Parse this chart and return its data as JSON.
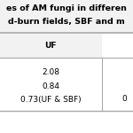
{
  "title_line1": "es of AM fungi in differen",
  "title_line2": "d-burn fields, SBF and m",
  "col_header": "UF",
  "rows": [
    "2.08",
    "0.84",
    "0.73(UF & SBF)"
  ],
  "extra_col_partial": "0",
  "bg_color": "#ffffff",
  "title_bg": "#f2f2f2",
  "header_bg": "#f2f2f2",
  "border_color": "#aaaaaa",
  "font_size": 6.5,
  "title_font_size": 6.8
}
